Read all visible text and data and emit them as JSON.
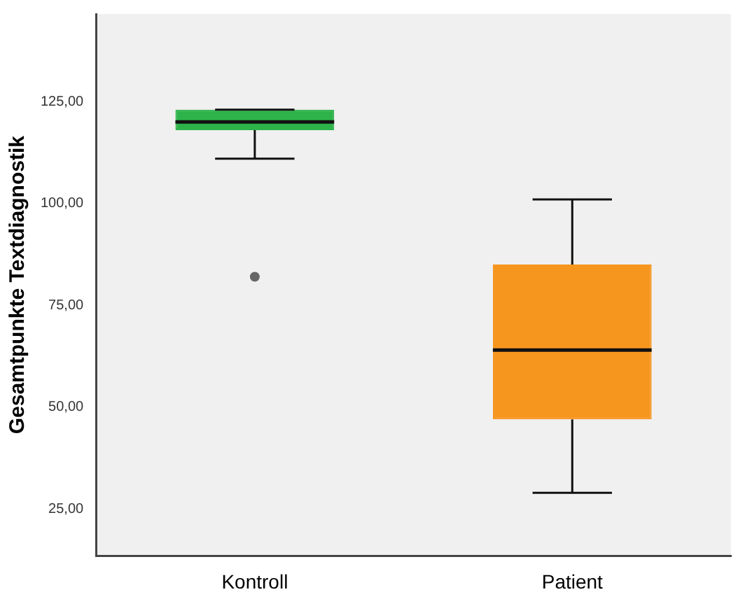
{
  "chart_data": {
    "type": "box",
    "ylabel": "Gesamtpunkte Textdiagnostik",
    "categories": [
      "Kontroll",
      "Patient"
    ],
    "colors": [
      "#2db34a",
      "#f7961e"
    ],
    "boxes": [
      {
        "low": 111,
        "q1": 118,
        "median": 120,
        "q3": 123,
        "high": 123,
        "outliers": [
          82
        ]
      },
      {
        "low": 29,
        "q1": 47,
        "median": 64,
        "q3": 85,
        "high": 101
      }
    ],
    "ylim": [
      13.5,
      146.5
    ],
    "yticks": [
      {
        "value": 25,
        "label": "25,00"
      },
      {
        "value": 50,
        "label": "50,00"
      },
      {
        "value": 75,
        "label": "75,00"
      },
      {
        "value": 100,
        "label": "100,00"
      },
      {
        "value": 125,
        "label": "125,00"
      }
    ],
    "grid": false,
    "legend": false
  }
}
